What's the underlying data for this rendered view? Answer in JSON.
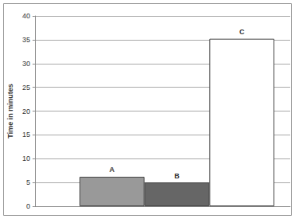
{
  "chart_data": {
    "type": "bar",
    "y_label": "Time in minutes",
    "categories": [
      "A",
      "B",
      "C"
    ],
    "values": [
      6.2,
      5.0,
      35.2
    ],
    "colors": [
      "#999999",
      "#666666",
      "#ffffff"
    ],
    "ylim": [
      0,
      40
    ],
    "yticks": [
      0,
      5,
      10,
      15,
      20,
      25,
      30,
      35,
      40
    ],
    "grid": true,
    "tick_labels": "y"
  }
}
